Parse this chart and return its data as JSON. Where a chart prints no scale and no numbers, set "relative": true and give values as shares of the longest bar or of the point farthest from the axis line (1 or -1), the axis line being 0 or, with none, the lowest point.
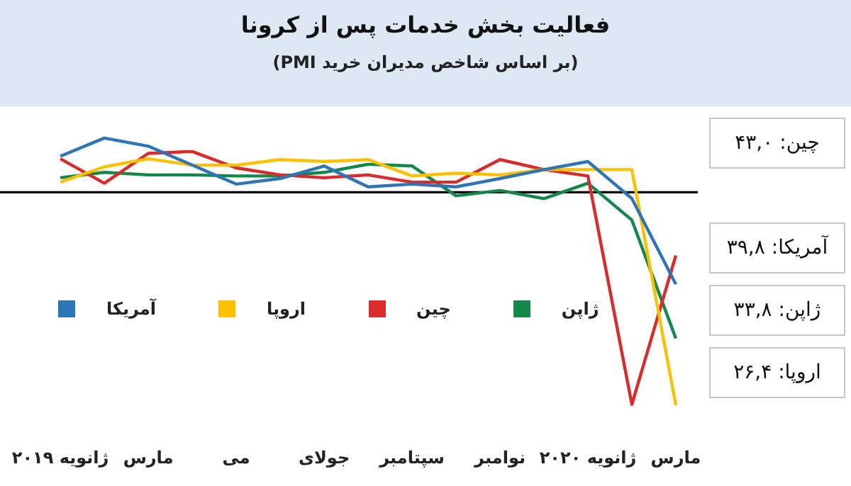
{
  "chart_data": {
    "type": "line",
    "title": "فعالیت بخش خدمات پس از کرونا",
    "subtitle": "(بر اساس شاخص مدیران خرید PMI)",
    "categories": [
      "ژانویه ۲۰۱۹",
      null,
      "مارس",
      null,
      "می",
      null,
      "جولای",
      null,
      "سپتامبر",
      null,
      "نوامبر",
      null,
      "ژانویه ۲۰۲۰",
      null,
      "مارس"
    ],
    "relative": true,
    "series": [
      {
        "name": "آمریکا",
        "color": "#2e75b6",
        "values": [
          0.169,
          0.254,
          0.216,
          0.127,
          0.038,
          0.064,
          0.123,
          0.025,
          0.038,
          0.025,
          0.064,
          0.106,
          0.144,
          -0.03,
          -0.432
        ]
      },
      {
        "name": "اروپا",
        "color": "#ffc000",
        "values": [
          0.047,
          0.119,
          0.157,
          0.127,
          0.127,
          0.153,
          0.144,
          0.153,
          0.076,
          0.089,
          0.081,
          0.106,
          0.106,
          0.106,
          -1
        ]
      },
      {
        "name": "چین",
        "color": "#d92b2b",
        "values": [
          0.157,
          0.042,
          0.182,
          0.191,
          0.114,
          0.081,
          0.068,
          0.081,
          0.047,
          0.047,
          0.153,
          0.106,
          0.076,
          -0.996,
          -0.297
        ]
      },
      {
        "name": "ژاپن",
        "color": "#14874a",
        "values": [
          0.068,
          0.093,
          0.081,
          0.081,
          0.076,
          0.076,
          0.093,
          0.131,
          0.123,
          -0.017,
          0.008,
          -0.03,
          0.042,
          -0.131,
          -0.686
        ]
      }
    ],
    "tick_labels": "x",
    "legend": "left",
    "marker": "none",
    "line_style": "solid",
    "annotations": [
      "چین: ۴۳,۰",
      "آمریکا: ۳۹,۸",
      "ژاپن: ۳۳,۸",
      "اروپا: ۲۶,۴"
    ]
  }
}
